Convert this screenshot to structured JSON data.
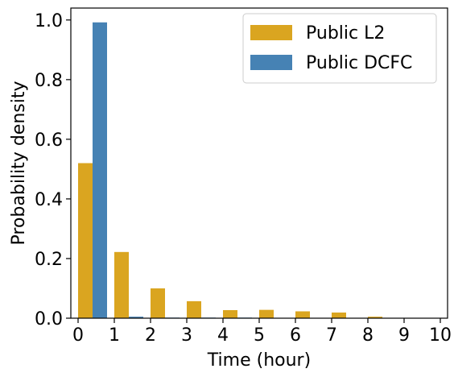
{
  "chart_data": {
    "type": "bar",
    "xlabel": "Time (hour)",
    "ylabel": "Probability density",
    "xlim": [
      -0.2,
      10.2
    ],
    "ylim": [
      0,
      1.04
    ],
    "xticks": [
      "0",
      "1",
      "2",
      "3",
      "4",
      "5",
      "6",
      "7",
      "8",
      "9",
      "10"
    ],
    "yticks": [
      "0.0",
      "0.2",
      "0.4",
      "0.6",
      "0.8",
      "1.0"
    ],
    "bin_width": 1,
    "legend_position": "top-right",
    "series": [
      {
        "name": "Public L2",
        "color": "#DAA520",
        "values": [
          0.52,
          0.222,
          0.1,
          0.057,
          0.027,
          0.028,
          0.023,
          0.019,
          0.005,
          0.0
        ]
      },
      {
        "name": "Public DCFC",
        "color": "#4682B4",
        "values": [
          0.992,
          0.005,
          0.002,
          0.002,
          0.002,
          0.001,
          0.0,
          0.0,
          0.0,
          0.0
        ]
      }
    ]
  }
}
